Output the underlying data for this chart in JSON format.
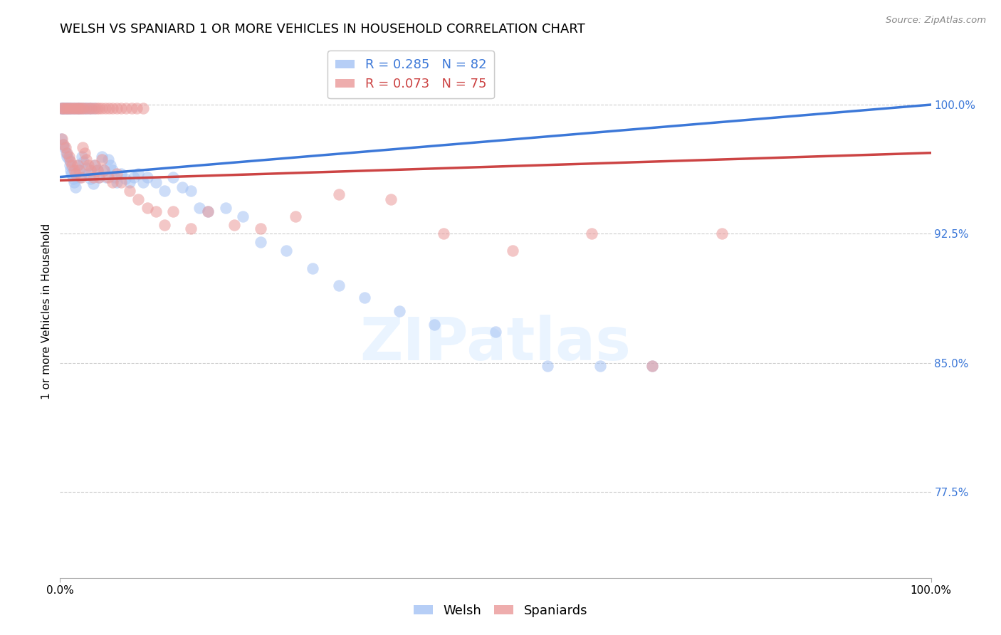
{
  "title": "WELSH VS SPANIARD 1 OR MORE VEHICLES IN HOUSEHOLD CORRELATION CHART",
  "source": "Source: ZipAtlas.com",
  "ylabel": "1 or more Vehicles in Household",
  "watermark": "ZIPatlas",
  "welsh_R": 0.285,
  "welsh_N": 82,
  "spaniard_R": 0.073,
  "spaniard_N": 75,
  "welsh_color": "#a4c2f4",
  "spaniard_color": "#ea9999",
  "welsh_line_color": "#3c78d8",
  "spaniard_line_color": "#cc4444",
  "background_color": "#ffffff",
  "grid_color": "#cccccc",
  "xlim": [
    0.0,
    1.0
  ],
  "ylim": [
    0.725,
    1.035
  ],
  "yticks": [
    0.775,
    0.85,
    0.925,
    1.0
  ],
  "ytick_labels": [
    "77.5%",
    "85.0%",
    "92.5%",
    "100.0%"
  ],
  "xticks": [
    0.0,
    1.0
  ],
  "xtick_labels": [
    "0.0%",
    "100.0%"
  ],
  "welsh_x": [
    0.001,
    0.003,
    0.005,
    0.007,
    0.008,
    0.01,
    0.011,
    0.012,
    0.013,
    0.015,
    0.016,
    0.018,
    0.02,
    0.022,
    0.023,
    0.025,
    0.027,
    0.03,
    0.032,
    0.035,
    0.038,
    0.04,
    0.043,
    0.045,
    0.048,
    0.05,
    0.053,
    0.055,
    0.058,
    0.06,
    0.063,
    0.065,
    0.07,
    0.075,
    0.08,
    0.085,
    0.09,
    0.095,
    0.1,
    0.11,
    0.12,
    0.13,
    0.14,
    0.15,
    0.16,
    0.17,
    0.19,
    0.21,
    0.23,
    0.26,
    0.29,
    0.32,
    0.35,
    0.39,
    0.43,
    0.5,
    0.56,
    0.62,
    0.68,
    0.001,
    0.002,
    0.003,
    0.004,
    0.005,
    0.006,
    0.007,
    0.008,
    0.009,
    0.01,
    0.011,
    0.013,
    0.015,
    0.017,
    0.019,
    0.021,
    0.023,
    0.025,
    0.028,
    0.03,
    0.033,
    0.036,
    0.04
  ],
  "welsh_y": [
    0.98,
    0.977,
    0.975,
    0.972,
    0.97,
    0.968,
    0.965,
    0.962,
    0.96,
    0.957,
    0.955,
    0.952,
    0.965,
    0.962,
    0.958,
    0.97,
    0.967,
    0.963,
    0.96,
    0.957,
    0.954,
    0.965,
    0.962,
    0.958,
    0.97,
    0.962,
    0.958,
    0.968,
    0.965,
    0.962,
    0.958,
    0.955,
    0.96,
    0.957,
    0.955,
    0.958,
    0.96,
    0.955,
    0.958,
    0.955,
    0.95,
    0.958,
    0.952,
    0.95,
    0.94,
    0.938,
    0.94,
    0.935,
    0.92,
    0.915,
    0.905,
    0.895,
    0.888,
    0.88,
    0.872,
    0.868,
    0.848,
    0.848,
    0.848,
    0.998,
    0.998,
    0.998,
    0.998,
    0.998,
    0.998,
    0.998,
    0.998,
    0.998,
    0.998,
    0.998,
    0.998,
    0.998,
    0.998,
    0.998,
    0.998,
    0.998,
    0.998,
    0.998,
    0.998,
    0.998,
    0.998,
    0.998
  ],
  "spaniard_x": [
    0.002,
    0.004,
    0.006,
    0.008,
    0.01,
    0.012,
    0.014,
    0.016,
    0.018,
    0.02,
    0.022,
    0.024,
    0.026,
    0.028,
    0.03,
    0.032,
    0.035,
    0.038,
    0.04,
    0.043,
    0.045,
    0.048,
    0.05,
    0.055,
    0.06,
    0.065,
    0.07,
    0.08,
    0.09,
    0.1,
    0.11,
    0.12,
    0.13,
    0.15,
    0.17,
    0.2,
    0.23,
    0.27,
    0.32,
    0.38,
    0.44,
    0.52,
    0.61,
    0.68,
    0.76,
    0.001,
    0.003,
    0.005,
    0.007,
    0.009,
    0.011,
    0.013,
    0.015,
    0.017,
    0.019,
    0.021,
    0.023,
    0.025,
    0.027,
    0.03,
    0.033,
    0.036,
    0.039,
    0.042,
    0.045,
    0.048,
    0.052,
    0.056,
    0.06,
    0.065,
    0.07,
    0.076,
    0.082,
    0.088,
    0.095
  ],
  "spaniard_y": [
    0.98,
    0.977,
    0.975,
    0.972,
    0.97,
    0.967,
    0.965,
    0.962,
    0.96,
    0.965,
    0.962,
    0.958,
    0.975,
    0.972,
    0.968,
    0.965,
    0.962,
    0.958,
    0.965,
    0.962,
    0.958,
    0.968,
    0.962,
    0.958,
    0.955,
    0.96,
    0.955,
    0.95,
    0.945,
    0.94,
    0.938,
    0.93,
    0.938,
    0.928,
    0.938,
    0.93,
    0.928,
    0.935,
    0.948,
    0.945,
    0.925,
    0.915,
    0.925,
    0.848,
    0.925,
    0.998,
    0.998,
    0.998,
    0.998,
    0.998,
    0.998,
    0.998,
    0.998,
    0.998,
    0.998,
    0.998,
    0.998,
    0.998,
    0.998,
    0.998,
    0.998,
    0.998,
    0.998,
    0.998,
    0.998,
    0.998,
    0.998,
    0.998,
    0.998,
    0.998,
    0.998,
    0.998,
    0.998,
    0.998,
    0.998
  ],
  "title_fontsize": 13,
  "axis_label_fontsize": 11,
  "tick_fontsize": 11,
  "legend_fontsize": 13,
  "marker_size": 140,
  "marker_alpha": 0.55,
  "line_width": 2.5,
  "figsize": [
    14.06,
    8.92
  ],
  "dpi": 100
}
